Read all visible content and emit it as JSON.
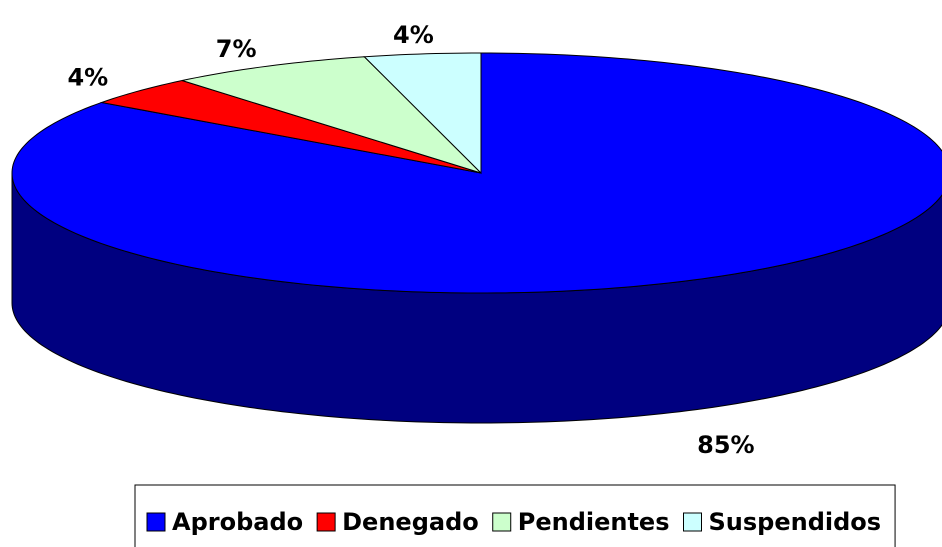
{
  "chart_data": {
    "type": "pie",
    "categories": [
      "Aprobado",
      "Denegado",
      "Pendientes",
      "Suspendidos"
    ],
    "values": [
      85,
      4,
      7,
      4
    ],
    "value_labels": [
      "85%",
      "4%",
      "7%",
      "4%"
    ],
    "colors": [
      "#0000ff",
      "#ff0000",
      "#ccffcc",
      "#ccffff"
    ],
    "legend": "bottom"
  }
}
